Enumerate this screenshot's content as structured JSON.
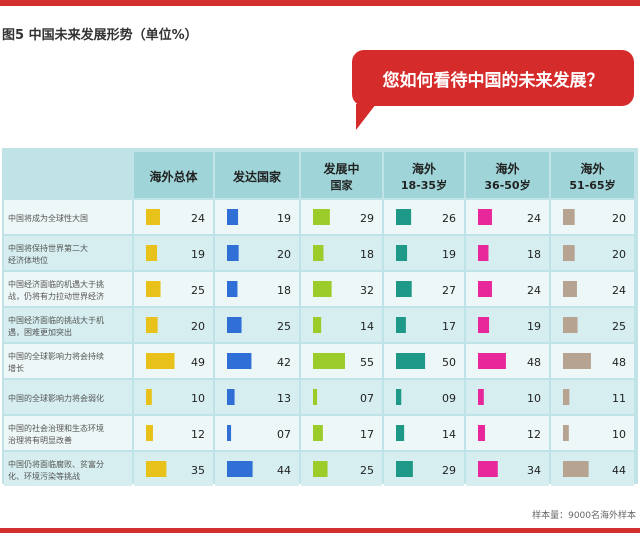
{
  "figure_title": "图5 中国未来发展形势（单位%）",
  "bubble_text": "您如何看待中国的未来发展？",
  "footer": "样本量：9000名海外样本",
  "colors": {
    "accent_red": "#d32f2f",
    "panel_bg": "#bfe3e6",
    "row_bg_light": "#eef7f8",
    "row_bg_dark": "#d6eef0"
  },
  "chart_data": {
    "type": "table",
    "columns": [
      {
        "label_lines": [
          "海外总体"
        ],
        "color": "#e8c21a"
      },
      {
        "label_lines": [
          "发达国家"
        ],
        "color": "#2f6fd6"
      },
      {
        "label_lines": [
          "发展中",
          "国家"
        ],
        "color": "#9ccc2a"
      },
      {
        "label_lines": [
          "海外",
          "18-35岁"
        ],
        "color": "#1f9987"
      },
      {
        "label_lines": [
          "海外",
          "36-50岁"
        ],
        "color": "#e8289a"
      },
      {
        "label_lines": [
          "海外",
          "51-65岁"
        ],
        "color": "#b6a392"
      }
    ],
    "rows": [
      {
        "label_lines": [
          "中国将成为全球性大国"
        ],
        "values": [
          "24",
          "19",
          "29",
          "26",
          "24",
          "20"
        ]
      },
      {
        "label_lines": [
          "中国将保持世界第二大",
          "经济体地位"
        ],
        "values": [
          "19",
          "20",
          "18",
          "19",
          "18",
          "20"
        ]
      },
      {
        "label_lines": [
          "中国经济面临的机遇大于挑",
          "战，仍将有力拉动世界经济"
        ],
        "values": [
          "25",
          "18",
          "32",
          "27",
          "24",
          "24"
        ]
      },
      {
        "label_lines": [
          "中国经济面临的挑战大于机",
          "遇，困难更加突出"
        ],
        "values": [
          "20",
          "25",
          "14",
          "17",
          "19",
          "25"
        ]
      },
      {
        "label_lines": [
          "中国的全球影响力将会持续",
          "增长"
        ],
        "values": [
          "49",
          "42",
          "55",
          "50",
          "48",
          "48"
        ]
      },
      {
        "label_lines": [
          "中国的全球影响力将会弱化"
        ],
        "values": [
          "10",
          "13",
          "07",
          "09",
          "10",
          "11"
        ]
      },
      {
        "label_lines": [
          "中国的社会治理和生态环境",
          "治理将有明显改善"
        ],
        "values": [
          "12",
          "07",
          "17",
          "14",
          "12",
          "10"
        ]
      },
      {
        "label_lines": [
          "中国仍将面临腐败、贫富分",
          "化、环境污染等挑战"
        ],
        "values": [
          "35",
          "44",
          "25",
          "29",
          "34",
          "44"
        ]
      }
    ]
  }
}
